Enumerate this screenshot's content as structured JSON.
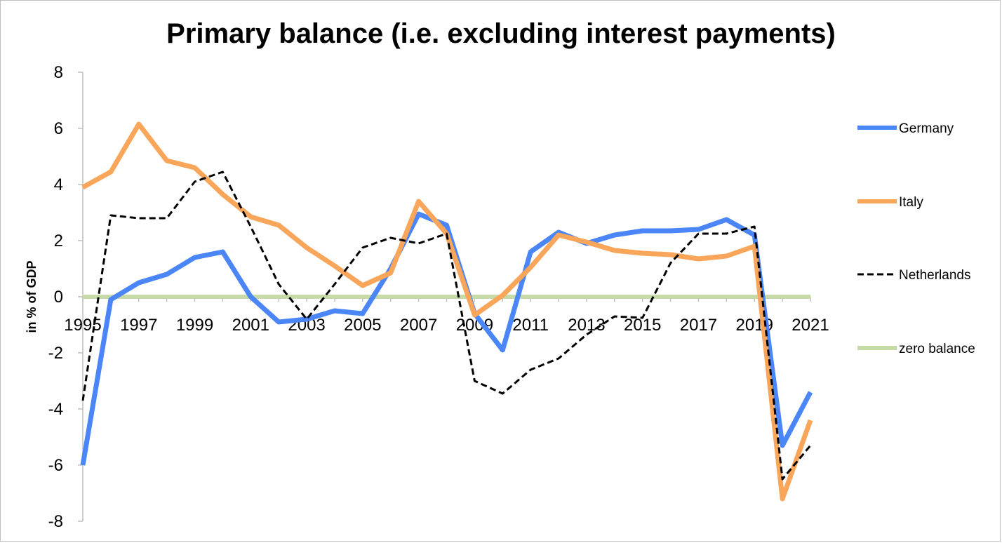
{
  "chart_data": {
    "type": "line",
    "title": "Primary balance (i.e. excluding interest payments)",
    "xlabel": "",
    "ylabel": "in % of GDP",
    "x": [
      1995,
      1996,
      1997,
      1998,
      1999,
      2000,
      2001,
      2002,
      2003,
      2004,
      2005,
      2006,
      2007,
      2008,
      2009,
      2010,
      2011,
      2012,
      2013,
      2014,
      2015,
      2016,
      2017,
      2018,
      2019,
      2020,
      2021
    ],
    "x_tick_labels": [
      "1995",
      "1997",
      "1999",
      "2001",
      "2003",
      "2005",
      "2007",
      "2009",
      "2011",
      "2013",
      "2015",
      "2017",
      "2019",
      "2021"
    ],
    "y_tick_labels": [
      "8",
      "6",
      "4",
      "2",
      "0",
      "-2",
      "-4",
      "-6",
      "-8"
    ],
    "ylim": [
      -8,
      8
    ],
    "grid": false,
    "legend_position": "right",
    "series": [
      {
        "name": "Germany",
        "color": "#4a86f7",
        "style": "solid",
        "values": [
          -6.0,
          -0.1,
          0.5,
          0.8,
          1.4,
          1.6,
          0.0,
          -0.9,
          -0.8,
          -0.5,
          -0.6,
          1.0,
          2.95,
          2.55,
          -0.6,
          -1.9,
          1.6,
          2.3,
          1.9,
          2.2,
          2.35,
          2.35,
          2.4,
          2.75,
          2.2,
          -5.3,
          -3.4
        ]
      },
      {
        "name": "Italy",
        "color": "#f9a55a",
        "style": "solid",
        "values": [
          3.9,
          4.45,
          6.15,
          4.85,
          4.6,
          3.65,
          2.85,
          2.55,
          1.75,
          1.1,
          0.4,
          0.85,
          3.4,
          2.25,
          -0.65,
          0.05,
          1.05,
          2.2,
          1.95,
          1.65,
          1.55,
          1.5,
          1.35,
          1.45,
          1.8,
          -7.2,
          -4.4
        ]
      },
      {
        "name": "Netherlands",
        "color": "#000000",
        "style": "dashed",
        "values": [
          -3.7,
          2.9,
          2.8,
          2.8,
          4.1,
          4.45,
          2.5,
          0.45,
          -0.8,
          0.45,
          1.75,
          2.1,
          1.9,
          2.25,
          -3.0,
          -3.45,
          -2.6,
          -2.2,
          -1.35,
          -0.7,
          -0.75,
          1.2,
          2.25,
          2.25,
          2.5,
          -6.5,
          -5.3
        ]
      },
      {
        "name": "zero balance",
        "color": "#c6dba7",
        "style": "solid",
        "values": [
          0,
          0,
          0,
          0,
          0,
          0,
          0,
          0,
          0,
          0,
          0,
          0,
          0,
          0,
          0,
          0,
          0,
          0,
          0,
          0,
          0,
          0,
          0,
          0,
          0,
          0,
          0
        ]
      }
    ]
  }
}
